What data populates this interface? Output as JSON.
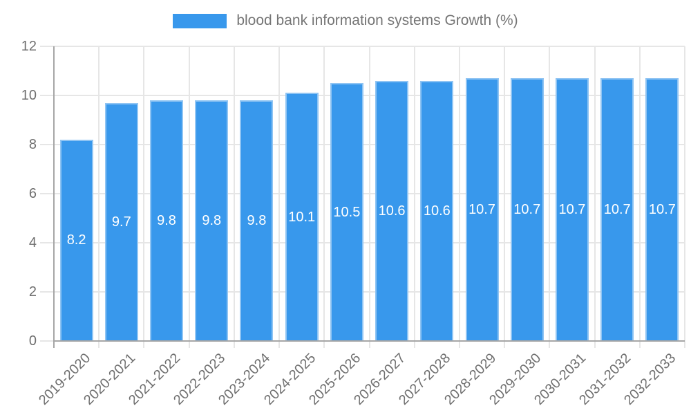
{
  "chart_data": {
    "type": "bar",
    "title": "blood bank information systems Growth (%)",
    "legend": {
      "label": "blood bank information systems Growth (%)",
      "position": "top"
    },
    "categories": [
      "2019-2020",
      "2020-2021",
      "2021-2022",
      "2022-2023",
      "2023-2024",
      "2024-2025",
      "2025-2026",
      "2026-2027",
      "2027-2028",
      "2028-2029",
      "2029-2030",
      "2030-2031",
      "2031-2032",
      "2032-2033"
    ],
    "values": [
      8.2,
      9.7,
      9.8,
      9.8,
      9.8,
      10.1,
      10.5,
      10.6,
      10.6,
      10.7,
      10.7,
      10.7,
      10.7,
      10.7
    ],
    "value_labels": [
      "8.2",
      "9.7",
      "9.8",
      "9.8",
      "9.8",
      "10.1",
      "10.5",
      "10.6",
      "10.6",
      "10.7",
      "10.7",
      "10.7",
      "10.7",
      "10.7"
    ],
    "xlabel": "",
    "ylabel": "",
    "ylim": [
      0,
      12
    ],
    "yticks": [
      0,
      2,
      4,
      6,
      8,
      10,
      12
    ],
    "grid": true,
    "colors": {
      "background": "#ffffff",
      "bar_fill": "#3898ec",
      "bar_border": "#8fc4f3",
      "grid_line": "#e6e6e6",
      "axis_line": "#a6a6a6",
      "tick_text": "#6f6f6f",
      "legend_text": "#757575",
      "value_text": "#ffffff"
    }
  }
}
